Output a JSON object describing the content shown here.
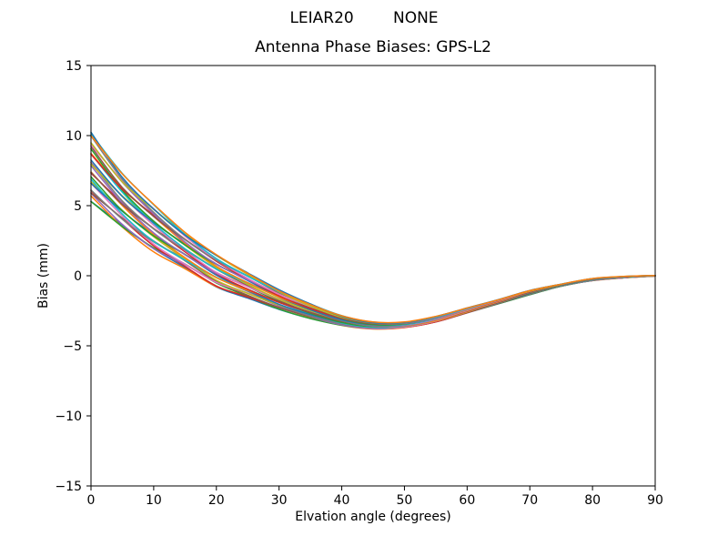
{
  "figure": {
    "suptitle": "LEIAR20        NONE",
    "title": "Antenna Phase Biases: GPS-L2",
    "xlabel": "Elvation angle (degrees)",
    "ylabel": "Bias (mm)"
  },
  "chart_data": {
    "type": "line",
    "suptitle": "LEIAR20        NONE",
    "title": "Antenna Phase Biases: GPS-L2",
    "xlabel": "Elvation angle (degrees)",
    "ylabel": "Bias (mm)",
    "xlim": [
      0,
      90
    ],
    "ylim": [
      -15,
      15
    ],
    "xticks": [
      0,
      10,
      20,
      30,
      40,
      50,
      60,
      70,
      80,
      90
    ],
    "yticks": [
      -15,
      -10,
      -5,
      0,
      5,
      10,
      15
    ],
    "grid": false,
    "legend": "none",
    "n_traces": 32,
    "x": [
      0,
      5,
      10,
      15,
      20,
      25,
      30,
      35,
      40,
      45,
      50,
      55,
      60,
      65,
      70,
      75,
      80,
      85,
      90
    ],
    "mean": [
      7.8,
      5.4,
      3.4,
      1.8,
      0.4,
      -0.7,
      -1.7,
      -2.5,
      -3.2,
      -3.55,
      -3.5,
      -3.1,
      -2.5,
      -1.85,
      -1.2,
      -0.7,
      -0.3,
      -0.1,
      0.0
    ],
    "envelope_max": [
      10.3,
      7.3,
      5.1,
      3.1,
      1.5,
      0.2,
      -1.0,
      -2.0,
      -2.85,
      -3.3,
      -3.3,
      -2.9,
      -2.3,
      -1.7,
      -1.05,
      -0.6,
      -0.2,
      -0.05,
      0.02
    ],
    "envelope_min": [
      5.3,
      3.4,
      1.7,
      0.5,
      -0.8,
      -1.6,
      -2.4,
      -3.05,
      -3.55,
      -3.8,
      -3.7,
      -3.3,
      -2.65,
      -2.0,
      -1.35,
      -0.75,
      -0.35,
      -0.15,
      -0.02
    ],
    "colors": [
      "#1f77b4",
      "#ff7f0e",
      "#2ca02c",
      "#d62728",
      "#9467bd",
      "#8c564b",
      "#e377c2",
      "#7f7f7f",
      "#bcbd22",
      "#17becf"
    ],
    "line_width": 1.5,
    "axes_color": "#000000",
    "background": "#ffffff"
  }
}
